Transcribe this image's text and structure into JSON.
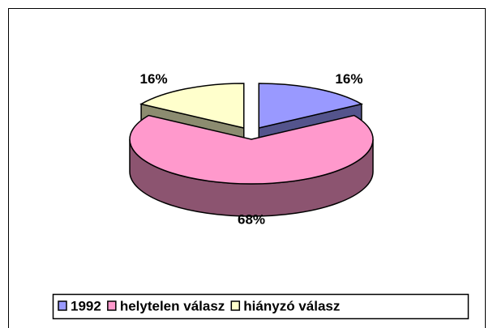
{
  "chart_data": {
    "type": "pie",
    "categories": [
      "1992",
      "helytelen válasz",
      "hiányzó válasz"
    ],
    "values": [
      16,
      68,
      16
    ],
    "value_labels": [
      "16%",
      "68%",
      "16%"
    ],
    "colors": [
      "#9999ff",
      "#ff99cc",
      "#ffffcc"
    ],
    "legend": "bottom"
  }
}
